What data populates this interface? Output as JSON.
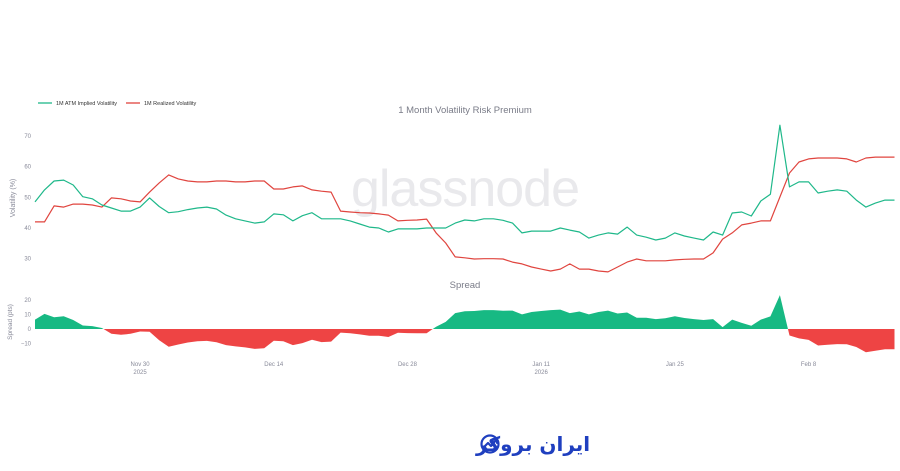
{
  "chart_data": [
    {
      "type": "line",
      "title": "1 Month Volatility Risk Premium",
      "ylabel": "Volatility (%)",
      "ylim": [
        25,
        76
      ],
      "yticks": [
        30,
        40,
        50,
        60,
        70
      ],
      "grid": false,
      "legend_placement": "top-left",
      "xticks": [
        {
          "date": "2025-11-30",
          "label": "Nov 30",
          "sub": "2025"
        },
        {
          "date": "2025-12-14",
          "label": "Dec 14",
          "sub": ""
        },
        {
          "date": "2025-12-28",
          "label": "Dec 28",
          "sub": ""
        },
        {
          "date": "2026-01-11",
          "label": "Jan 11",
          "sub": "2026"
        },
        {
          "date": "2026-01-25",
          "label": "Jan 25",
          "sub": ""
        },
        {
          "date": "2026-02-08",
          "label": "Feb 8",
          "sub": ""
        }
      ],
      "x": [
        "2025-11-19",
        "2025-11-20",
        "2025-11-21",
        "2025-11-22",
        "2025-11-23",
        "2025-11-24",
        "2025-11-25",
        "2025-11-26",
        "2025-11-27",
        "2025-11-28",
        "2025-11-29",
        "2025-11-30",
        "2025-12-01",
        "2025-12-02",
        "2025-12-03",
        "2025-12-04",
        "2025-12-05",
        "2025-12-06",
        "2025-12-07",
        "2025-12-08",
        "2025-12-09",
        "2025-12-10",
        "2025-12-11",
        "2025-12-12",
        "2025-12-13",
        "2025-12-14",
        "2025-12-15",
        "2025-12-16",
        "2025-12-17",
        "2025-12-18",
        "2025-12-19",
        "2025-12-20",
        "2025-12-21",
        "2025-12-22",
        "2025-12-23",
        "2025-12-24",
        "2025-12-25",
        "2025-12-26",
        "2025-12-27",
        "2025-12-28",
        "2025-12-29",
        "2025-12-30",
        "2025-12-31",
        "2026-01-01",
        "2026-01-02",
        "2026-01-03",
        "2026-01-04",
        "2026-01-05",
        "2026-01-06",
        "2026-01-07",
        "2026-01-08",
        "2026-01-09",
        "2026-01-10",
        "2026-01-11",
        "2026-01-12",
        "2026-01-13",
        "2026-01-14",
        "2026-01-15",
        "2026-01-16",
        "2026-01-17",
        "2026-01-18",
        "2026-01-19",
        "2026-01-20",
        "2026-01-21",
        "2026-01-22",
        "2026-01-23",
        "2026-01-24",
        "2026-01-25",
        "2026-01-26",
        "2026-01-27",
        "2026-01-28",
        "2026-01-29",
        "2026-01-30",
        "2026-01-31",
        "2026-02-01",
        "2026-02-02",
        "2026-02-03",
        "2026-02-04",
        "2026-02-05",
        "2026-02-06",
        "2026-02-07",
        "2026-02-08",
        "2026-02-09",
        "2026-02-10",
        "2026-02-11",
        "2026-02-12",
        "2026-02-13",
        "2026-02-14",
        "2026-02-15",
        "2026-02-16",
        "2026-02-17"
      ],
      "series": [
        {
          "name": "1M ATM Implied Volatility",
          "color": "#1fb88a",
          "values": [
            48.5,
            52.4,
            55.3,
            55.6,
            54,
            50.2,
            49.5,
            47.5,
            46.5,
            45.5,
            45.5,
            46.8,
            49.8,
            47,
            45,
            45.3,
            46,
            46.5,
            46.8,
            46.2,
            44.2,
            43,
            42.3,
            41.6,
            42,
            44.6,
            44.3,
            42.3,
            44,
            45,
            43,
            43,
            43,
            42.3,
            41.3,
            40.3,
            40,
            38.7,
            39.7,
            39.7,
            39.7,
            40,
            40,
            40,
            41.6,
            42.6,
            42.3,
            43,
            43,
            42.5,
            41.6,
            38.4,
            39,
            39,
            39,
            40,
            39.3,
            38.7,
            36.7,
            37.7,
            38.4,
            38,
            40.3,
            37.7,
            37,
            36.1,
            36.7,
            38.4,
            37.4,
            36.7,
            36.1,
            38.7,
            37.7,
            44.9,
            45.2,
            43.9,
            48.8,
            51,
            73.5,
            53.4,
            55,
            55,
            51.4,
            52,
            52.4,
            52,
            49.1,
            46.8,
            48.1,
            49.1,
            49.1
          ]
        },
        {
          "name": "1M Realized Volatility",
          "color": "#e0453f",
          "values": [
            42,
            42,
            47.2,
            46.8,
            47.8,
            47.8,
            47.5,
            46.8,
            49.8,
            49.5,
            48.8,
            48.5,
            51.7,
            54.7,
            57.3,
            56,
            55.3,
            55,
            55,
            55.3,
            55.3,
            55,
            55,
            55.3,
            55.3,
            52.7,
            52.7,
            53.4,
            53.7,
            52.4,
            52,
            51.7,
            45.5,
            45.2,
            45,
            44.9,
            44.6,
            44.2,
            42.3,
            42.5,
            42.6,
            42.9,
            38.4,
            35.1,
            30.6,
            30.3,
            29.9,
            30,
            30,
            29.9,
            28.9,
            28.3,
            27.3,
            26.6,
            26,
            26.6,
            28.3,
            26.6,
            26.6,
            26,
            25.7,
            27.3,
            28.9,
            29.9,
            29.3,
            29.3,
            29.3,
            29.6,
            29.8,
            29.9,
            29.9,
            31.9,
            36.4,
            38.4,
            41,
            41.6,
            42.3,
            42.3,
            50.1,
            57.9,
            61.5,
            62.5,
            62.8,
            62.8,
            62.8,
            62.5,
            61.5,
            62.8,
            63.1,
            63.1,
            63.1
          ]
        }
      ]
    },
    {
      "type": "area",
      "title": "Spread",
      "ylabel": "Spread (pts)",
      "ylim": [
        -18,
        26
      ],
      "yticks": [
        -10,
        0,
        10,
        20
      ],
      "positive_color": "#17b983",
      "negative_color": "#ee4444",
      "values": [
        6.5,
        10.4,
        8.1,
        8.8,
        6.2,
        2.4,
        2,
        0.7,
        -3.3,
        -4,
        -3.3,
        -1.7,
        -1.9,
        -7.7,
        -12.3,
        -10.7,
        -9.3,
        -8.5,
        -8.2,
        -9.1,
        -11.1,
        -12,
        -12.7,
        -13.7,
        -13.3,
        -8.1,
        -8.4,
        -11.1,
        -9.7,
        -7.4,
        -9,
        -8.7,
        -2.5,
        -2.9,
        -3.7,
        -4.6,
        -4.6,
        -5.5,
        -2.6,
        -2.8,
        -2.9,
        -2.9,
        1.6,
        4.9,
        11,
        12.3,
        12.4,
        13,
        13,
        12.6,
        12.7,
        10.1,
        11.7,
        12.4,
        13,
        13.4,
        11,
        12.1,
        10.1,
        11.7,
        12.7,
        10.7,
        11.4,
        7.8,
        7.7,
        6.8,
        7.4,
        8.8,
        7.6,
        6.8,
        6.2,
        6.8,
        1.3,
        6.5,
        4.2,
        2.3,
        6.5,
        8.7,
        23.4,
        -4.5,
        -6.5,
        -7.5,
        -11.4,
        -10.8,
        -10.4,
        -10.5,
        -12.4,
        -16,
        -15,
        -14,
        -14
      ]
    }
  ],
  "watermark": "glassnode",
  "logo": {
    "text": "ایران بروکر",
    "color": "#1f3fbf",
    "icon": "trend-chart-logo-icon"
  }
}
